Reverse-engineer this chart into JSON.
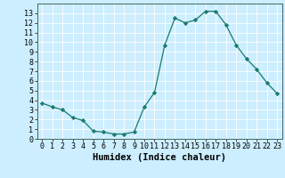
{
  "x": [
    0,
    1,
    2,
    3,
    4,
    5,
    6,
    7,
    8,
    9,
    10,
    11,
    12,
    13,
    14,
    15,
    16,
    17,
    18,
    19,
    20,
    21,
    22,
    23
  ],
  "y": [
    3.7,
    3.3,
    3.0,
    2.2,
    1.9,
    0.8,
    0.7,
    0.5,
    0.5,
    0.7,
    3.3,
    4.8,
    9.7,
    12.5,
    12.0,
    12.3,
    13.2,
    13.2,
    11.8,
    9.7,
    8.3,
    7.2,
    5.8,
    4.7
  ],
  "xlabel": "Humidex (Indice chaleur)",
  "line_color": "#1a7a6e",
  "marker": "D",
  "marker_size": 2.2,
  "bg_color": "#cceeff",
  "grid_color": "#ffffff",
  "xlim": [
    -0.5,
    23.5
  ],
  "ylim": [
    0,
    14
  ],
  "yticks": [
    0,
    1,
    2,
    3,
    4,
    5,
    6,
    7,
    8,
    9,
    10,
    11,
    12,
    13
  ],
  "xticks": [
    0,
    1,
    2,
    3,
    4,
    5,
    6,
    7,
    8,
    9,
    10,
    11,
    12,
    13,
    14,
    15,
    16,
    17,
    18,
    19,
    20,
    21,
    22,
    23
  ],
  "xlabel_fontsize": 7.5,
  "tick_fontsize": 6.0,
  "line_width": 0.9
}
